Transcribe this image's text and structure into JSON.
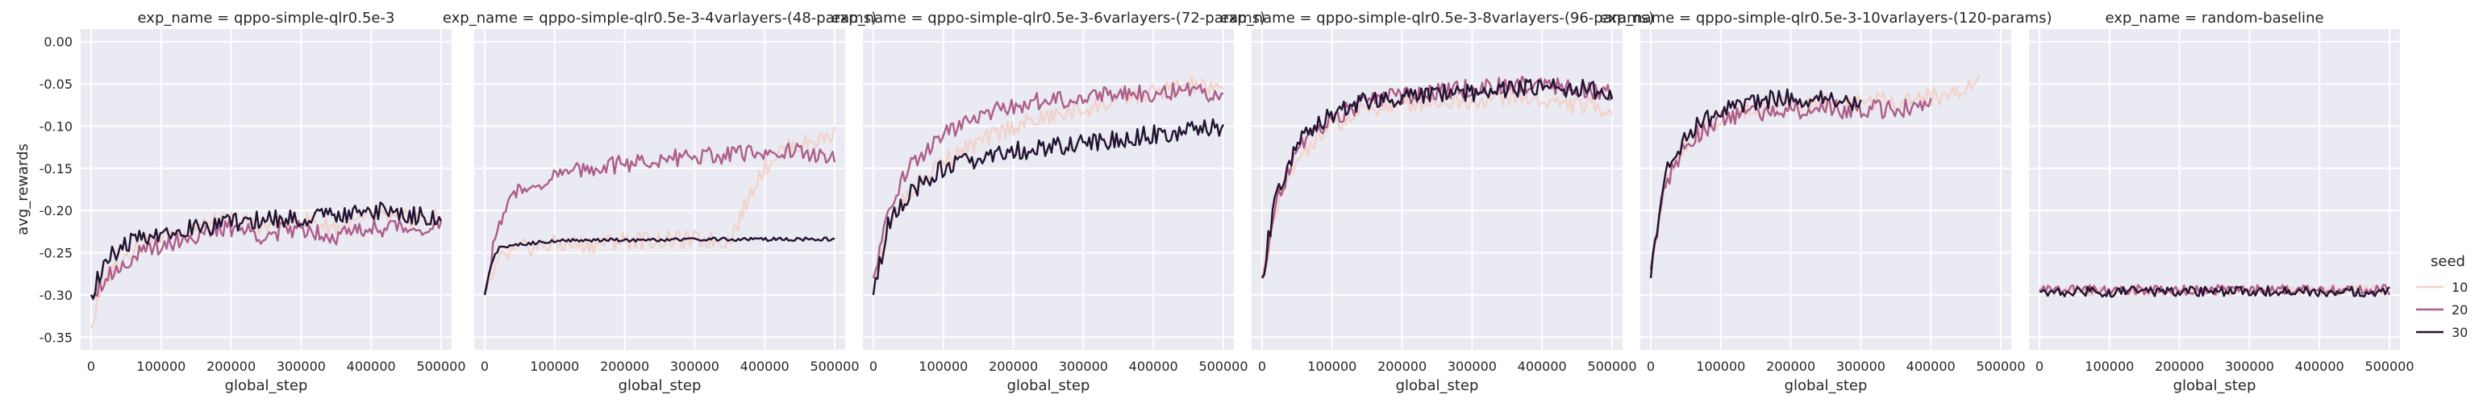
{
  "chart_data": [
    {
      "type": "line",
      "title": "exp_name = qppo-simple-qlr0.5e-3",
      "xlabel": "global_step",
      "ylabel": "avg_rewards",
      "xlim": [
        -15000,
        515000
      ],
      "ylim": [
        -0.365,
        0.015
      ],
      "x_ticks": [
        "0",
        "100000",
        "200000",
        "300000",
        "400000",
        "500000"
      ],
      "y_ticks": [
        "0.00",
        "-0.05",
        "-0.10",
        "-0.15",
        "-0.20",
        "-0.25",
        "-0.30",
        "-0.35"
      ],
      "legend": "right",
      "series": [
        {
          "name": "10",
          "x": [
            0,
            20000,
            50000,
            100000,
            150000,
            200000,
            250000,
            300000,
            350000,
            400000,
            450000,
            500000
          ],
          "y": [
            -0.34,
            -0.28,
            -0.25,
            -0.23,
            -0.22,
            -0.21,
            -0.22,
            -0.21,
            -0.22,
            -0.21,
            -0.21,
            -0.21
          ]
        },
        {
          "name": "20",
          "x": [
            0,
            20000,
            50000,
            100000,
            150000,
            200000,
            250000,
            300000,
            350000,
            400000,
            450000,
            500000
          ],
          "y": [
            -0.3,
            -0.28,
            -0.26,
            -0.24,
            -0.23,
            -0.22,
            -0.23,
            -0.22,
            -0.23,
            -0.22,
            -0.22,
            -0.22
          ]
        },
        {
          "name": "30",
          "x": [
            0,
            20000,
            50000,
            100000,
            150000,
            200000,
            250000,
            300000,
            350000,
            400000,
            450000,
            500000
          ],
          "y": [
            -0.3,
            -0.26,
            -0.24,
            -0.225,
            -0.22,
            -0.215,
            -0.21,
            -0.21,
            -0.205,
            -0.2,
            -0.205,
            -0.21
          ]
        }
      ]
    },
    {
      "type": "line",
      "title": "exp_name = qppo-simple-qlr0.5e-3-4varlayers-(48-params)",
      "xlabel": "global_step",
      "ylabel": "",
      "xlim": [
        -15000,
        515000
      ],
      "ylim": [
        -0.365,
        0.015
      ],
      "x_ticks": [
        "0",
        "100000",
        "200000",
        "300000",
        "400000",
        "500000"
      ],
      "series": [
        {
          "name": "10",
          "x": [
            0,
            20000,
            50000,
            100000,
            150000,
            200000,
            250000,
            300000,
            350000,
            370000,
            390000,
            420000,
            460000,
            500000
          ],
          "y": [
            -0.3,
            -0.26,
            -0.245,
            -0.24,
            -0.24,
            -0.235,
            -0.235,
            -0.235,
            -0.235,
            -0.2,
            -0.16,
            -0.13,
            -0.12,
            -0.11
          ]
        },
        {
          "name": "20",
          "x": [
            0,
            20000,
            50000,
            100000,
            150000,
            200000,
            250000,
            300000,
            350000,
            400000,
            450000,
            500000
          ],
          "y": [
            -0.3,
            -0.21,
            -0.175,
            -0.16,
            -0.15,
            -0.145,
            -0.14,
            -0.135,
            -0.135,
            -0.13,
            -0.13,
            -0.14
          ]
        },
        {
          "name": "30",
          "x": [
            0,
            10000,
            20000,
            50000,
            100000,
            150000,
            200000,
            250000,
            300000,
            350000,
            400000,
            450000,
            500000
          ],
          "y": [
            -0.3,
            -0.26,
            -0.245,
            -0.24,
            -0.236,
            -0.235,
            -0.235,
            -0.235,
            -0.234,
            -0.234,
            -0.234,
            -0.234,
            -0.234
          ]
        }
      ]
    },
    {
      "type": "line",
      "title": "exp_name = qppo-simple-qlr0.5e-3-6varlayers-(72-params)",
      "xlabel": "global_step",
      "ylabel": "",
      "xlim": [
        -15000,
        515000
      ],
      "ylim": [
        -0.365,
        0.015
      ],
      "x_ticks": [
        "0",
        "100000",
        "200000",
        "300000",
        "400000",
        "500000"
      ],
      "series": [
        {
          "name": "10",
          "x": [
            0,
            20000,
            50000,
            100000,
            150000,
            200000,
            250000,
            300000,
            350000,
            400000,
            450000,
            500000
          ],
          "y": [
            -0.28,
            -0.22,
            -0.18,
            -0.14,
            -0.12,
            -0.1,
            -0.09,
            -0.08,
            -0.07,
            -0.06,
            -0.05,
            -0.06
          ]
        },
        {
          "name": "20",
          "x": [
            0,
            20000,
            50000,
            100000,
            150000,
            200000,
            250000,
            300000,
            350000,
            400000,
            450000,
            500000
          ],
          "y": [
            -0.28,
            -0.2,
            -0.15,
            -0.11,
            -0.09,
            -0.075,
            -0.07,
            -0.065,
            -0.06,
            -0.06,
            -0.06,
            -0.065
          ]
        },
        {
          "name": "30",
          "x": [
            0,
            20000,
            50000,
            100000,
            150000,
            200000,
            250000,
            300000,
            350000,
            400000,
            450000,
            500000
          ],
          "y": [
            -0.3,
            -0.22,
            -0.18,
            -0.15,
            -0.14,
            -0.13,
            -0.125,
            -0.12,
            -0.115,
            -0.11,
            -0.105,
            -0.1
          ]
        }
      ]
    },
    {
      "type": "line",
      "title": "exp_name = qppo-simple-qlr0.5e-3-8varlayers-(96-params)",
      "xlabel": "global_step",
      "ylabel": "",
      "xlim": [
        -15000,
        515000
      ],
      "ylim": [
        -0.365,
        0.015
      ],
      "x_ticks": [
        "0",
        "100000",
        "200000",
        "300000",
        "400000",
        "500000"
      ],
      "series": [
        {
          "name": "10",
          "x": [
            0,
            20000,
            50000,
            100000,
            150000,
            200000,
            250000,
            300000,
            350000,
            400000,
            450000,
            500000
          ],
          "y": [
            -0.28,
            -0.2,
            -0.14,
            -0.1,
            -0.08,
            -0.075,
            -0.07,
            -0.07,
            -0.065,
            -0.07,
            -0.075,
            -0.08
          ]
        },
        {
          "name": "20",
          "x": [
            0,
            20000,
            50000,
            100000,
            150000,
            200000,
            250000,
            300000,
            350000,
            400000,
            450000,
            500000
          ],
          "y": [
            -0.28,
            -0.19,
            -0.13,
            -0.09,
            -0.07,
            -0.065,
            -0.06,
            -0.055,
            -0.05,
            -0.05,
            -0.055,
            -0.06
          ]
        },
        {
          "name": "30",
          "x": [
            0,
            20000,
            50000,
            100000,
            150000,
            200000,
            250000,
            300000,
            350000,
            400000,
            450000,
            500000
          ],
          "y": [
            -0.28,
            -0.18,
            -0.12,
            -0.085,
            -0.07,
            -0.065,
            -0.06,
            -0.06,
            -0.055,
            -0.055,
            -0.055,
            -0.06
          ]
        }
      ]
    },
    {
      "type": "line",
      "title": "exp_name = qppo-simple-qlr0.5e-3-10varlayers-(120-params)",
      "xlabel": "global_step",
      "ylabel": "",
      "xlim": [
        -15000,
        515000
      ],
      "ylim": [
        -0.365,
        0.015
      ],
      "x_ticks": [
        "0",
        "100000",
        "200000",
        "300000",
        "400000",
        "500000"
      ],
      "series": [
        {
          "name": "10",
          "x": [
            0,
            20000,
            50000,
            100000,
            150000,
            200000,
            250000,
            300000,
            350000,
            400000,
            450000,
            470000
          ],
          "y": [
            -0.27,
            -0.17,
            -0.12,
            -0.09,
            -0.08,
            -0.075,
            -0.07,
            -0.07,
            -0.07,
            -0.065,
            -0.06,
            -0.03
          ]
        },
        {
          "name": "20",
          "x": [
            0,
            20000,
            50000,
            100000,
            150000,
            200000,
            250000,
            300000,
            350000,
            400000
          ],
          "y": [
            -0.27,
            -0.17,
            -0.12,
            -0.09,
            -0.085,
            -0.08,
            -0.08,
            -0.08,
            -0.08,
            -0.075
          ]
        },
        {
          "name": "30",
          "x": [
            0,
            20000,
            50000,
            100000,
            150000,
            200000,
            250000,
            300000
          ],
          "y": [
            -0.28,
            -0.16,
            -0.11,
            -0.08,
            -0.07,
            -0.065,
            -0.07,
            -0.075
          ]
        }
      ]
    },
    {
      "type": "line",
      "title": "exp_name = random-baseline",
      "xlabel": "global_step",
      "ylabel": "",
      "xlim": [
        -15000,
        515000
      ],
      "ylim": [
        -0.365,
        0.015
      ],
      "x_ticks": [
        "0",
        "100000",
        "200000",
        "300000",
        "400000",
        "500000"
      ],
      "series": [
        {
          "name": "10",
          "x": [
            0,
            50000,
            100000,
            150000,
            200000,
            250000,
            300000,
            350000,
            400000,
            450000,
            500000
          ],
          "y": [
            -0.295,
            -0.295,
            -0.295,
            -0.295,
            -0.295,
            -0.295,
            -0.295,
            -0.295,
            -0.295,
            -0.295,
            -0.295
          ]
        },
        {
          "name": "20",
          "x": [
            0,
            50000,
            100000,
            150000,
            200000,
            250000,
            300000,
            350000,
            400000,
            450000,
            500000
          ],
          "y": [
            -0.294,
            -0.294,
            -0.294,
            -0.294,
            -0.294,
            -0.294,
            -0.294,
            -0.294,
            -0.294,
            -0.294,
            -0.294
          ]
        },
        {
          "name": "30",
          "x": [
            0,
            50000,
            100000,
            150000,
            200000,
            250000,
            300000,
            350000,
            400000,
            450000,
            500000
          ],
          "y": [
            -0.296,
            -0.296,
            -0.296,
            -0.296,
            -0.296,
            -0.296,
            -0.296,
            -0.296,
            -0.296,
            -0.296,
            -0.296
          ]
        }
      ]
    }
  ],
  "legend": {
    "title": "seed",
    "entries": [
      {
        "label": "10",
        "color": "#f2d3cc"
      },
      {
        "label": "20",
        "color": "#ad5e8a"
      },
      {
        "label": "30",
        "color": "#231331"
      }
    ]
  }
}
